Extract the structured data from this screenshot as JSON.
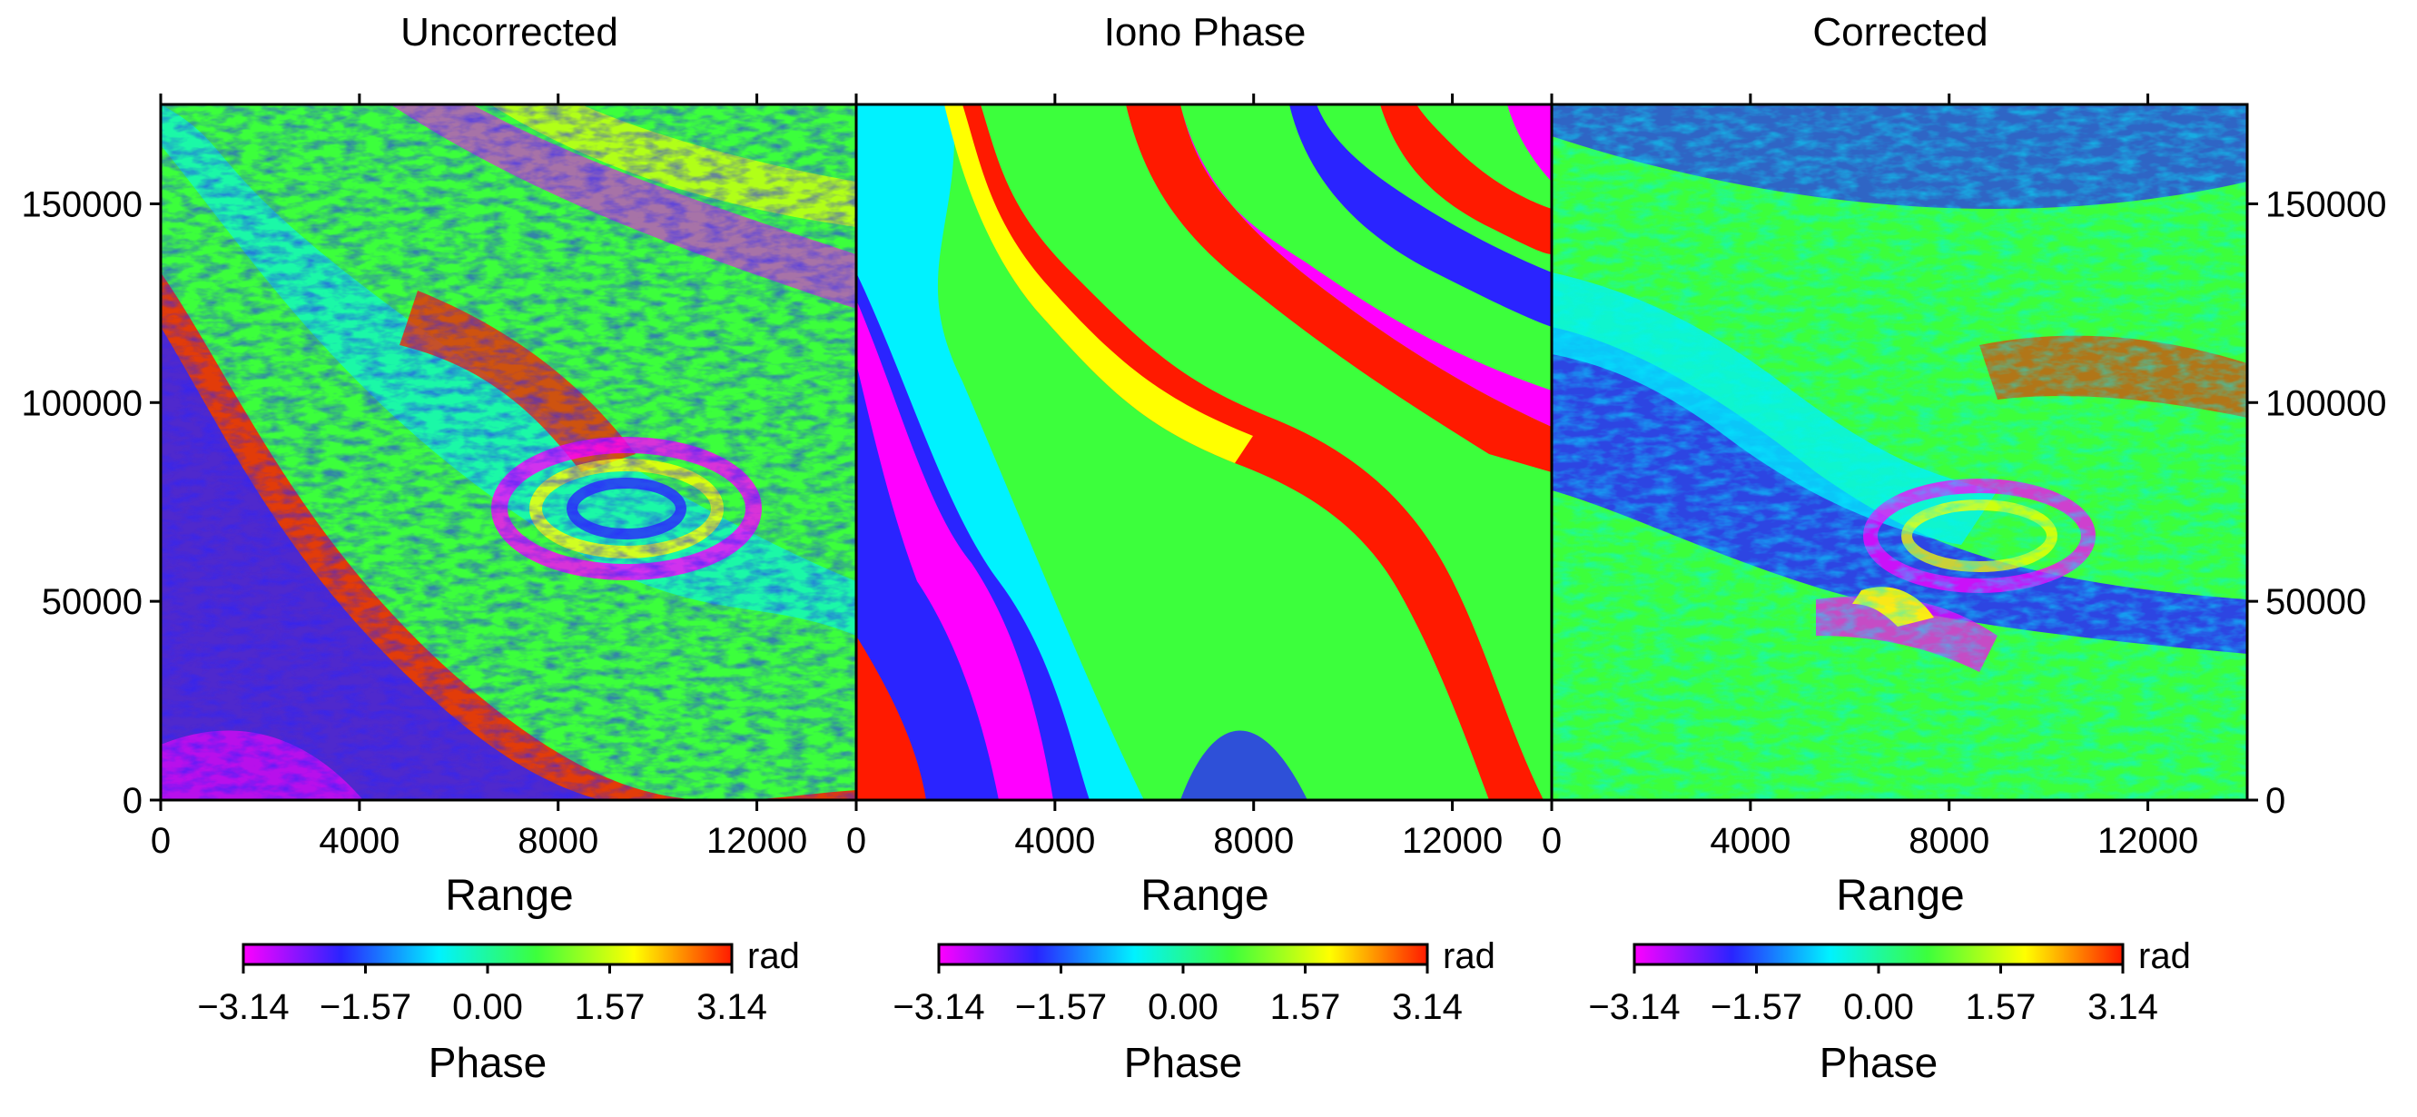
{
  "chart_data": [
    {
      "type": "heatmap",
      "title": "Uncorrected",
      "xlabel": "Range",
      "xlim": [
        0,
        14000
      ],
      "ylim": [
        0,
        175000
      ],
      "x_ticks": [
        "0",
        "4000",
        "8000",
        "12000"
      ],
      "x_tick_values": [
        0,
        4000,
        8000,
        12000
      ],
      "y_ticks": [
        "0",
        "50000",
        "100000",
        "150000"
      ],
      "y_tick_values": [
        0,
        50000,
        100000,
        150000
      ],
      "y_axis_labels": "left",
      "texture": "noisy-interferogram",
      "colorbar": {
        "label": "Phase",
        "unit": "rad",
        "ticks": [
          "−3.14",
          "−1.57",
          "0.00",
          "1.57",
          "3.14"
        ],
        "range": [
          -3.14,
          3.14
        ]
      }
    },
    {
      "type": "heatmap",
      "title": "Iono Phase",
      "xlabel": "Range",
      "xlim": [
        0,
        14000
      ],
      "ylim": [
        0,
        175000
      ],
      "x_ticks": [
        "0",
        "4000",
        "8000",
        "12000"
      ],
      "x_tick_values": [
        0,
        4000,
        8000,
        12000
      ],
      "y_ticks": [],
      "y_tick_values": [],
      "y_axis_labels": "none",
      "texture": "smooth-fringes",
      "colorbar": {
        "label": "Phase",
        "unit": "rad",
        "ticks": [
          "−3.14",
          "−1.57",
          "0.00",
          "1.57",
          "3.14"
        ],
        "range": [
          -3.14,
          3.14
        ]
      }
    },
    {
      "type": "heatmap",
      "title": "Corrected",
      "xlabel": "Range",
      "xlim": [
        0,
        14000
      ],
      "ylim": [
        0,
        175000
      ],
      "x_ticks": [
        "0",
        "4000",
        "8000",
        "12000"
      ],
      "x_tick_values": [
        0,
        4000,
        8000,
        12000
      ],
      "y_ticks": [
        "0",
        "50000",
        "100000",
        "150000"
      ],
      "y_tick_values": [
        0,
        50000,
        100000,
        150000
      ],
      "y_axis_labels": "right",
      "texture": "noisy-corrected",
      "colorbar": {
        "label": "Phase",
        "unit": "rad",
        "ticks": [
          "−3.14",
          "−1.57",
          "0.00",
          "1.57",
          "3.14"
        ],
        "range": [
          -3.14,
          3.14
        ]
      }
    }
  ],
  "colormap": [
    "#ff00ff",
    "#2a24ff",
    "#00f2ff",
    "#3cff3c",
    "#ffff00",
    "#ff1a00"
  ]
}
